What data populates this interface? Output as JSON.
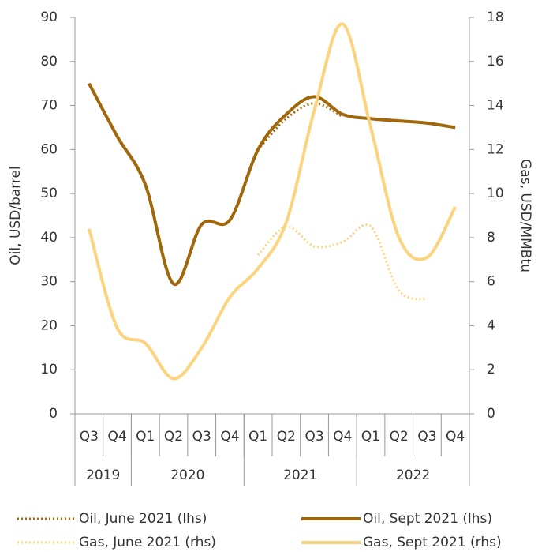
{
  "chart_data": {
    "type": "line",
    "categories": [
      "Q3",
      "Q4",
      "Q1",
      "Q2",
      "Q3",
      "Q4",
      "Q1",
      "Q2",
      "Q3",
      "Q4",
      "Q1",
      "Q2",
      "Q3",
      "Q4"
    ],
    "groups": [
      {
        "label": "2019",
        "span": 2
      },
      {
        "label": "2020",
        "span": 4
      },
      {
        "label": "2021",
        "span": 4
      },
      {
        "label": "2022",
        "span": 4
      }
    ],
    "ylabel": "Oil, USD/barrel",
    "y2label": "Gas, USD/MMBtu",
    "ylim": [
      0,
      90
    ],
    "yticks": [
      0,
      10,
      20,
      30,
      40,
      50,
      60,
      70,
      80,
      90
    ],
    "y2lim": [
      0,
      18
    ],
    "y2ticks": [
      0,
      2,
      4,
      6,
      8,
      10,
      12,
      14,
      16,
      18
    ],
    "series": [
      {
        "name": "Oil, June 2021 (lhs)",
        "color": "#a0680a",
        "dash": true,
        "values": [
          null,
          null,
          null,
          null,
          null,
          null,
          60,
          67,
          70.5,
          67.5,
          null,
          null,
          null,
          null
        ]
      },
      {
        "name": "Oil, Sept 2021 (lhs)",
        "color": "#a0680a",
        "dash": false,
        "values": [
          75,
          63,
          52,
          29.5,
          43,
          44,
          60,
          68,
          72,
          68,
          67,
          66.5,
          66,
          65
        ]
      },
      {
        "name": "Gas, June 2021 (rhs)",
        "color": "#fcd47f",
        "dash": true,
        "axis": "y2",
        "values": [
          null,
          null,
          null,
          null,
          null,
          null,
          7.2,
          8.5,
          7.6,
          7.8,
          8.5,
          5.6,
          5.2,
          null
        ]
      },
      {
        "name": "Gas, Sept 2021 (rhs)",
        "color": "#fcd47f",
        "dash": false,
        "axis": "y2",
        "values": [
          8.4,
          3.9,
          3.2,
          1.6,
          3,
          5.3,
          6.6,
          8.7,
          13.8,
          17.7,
          13,
          8,
          7.1,
          9.4
        ]
      }
    ]
  }
}
